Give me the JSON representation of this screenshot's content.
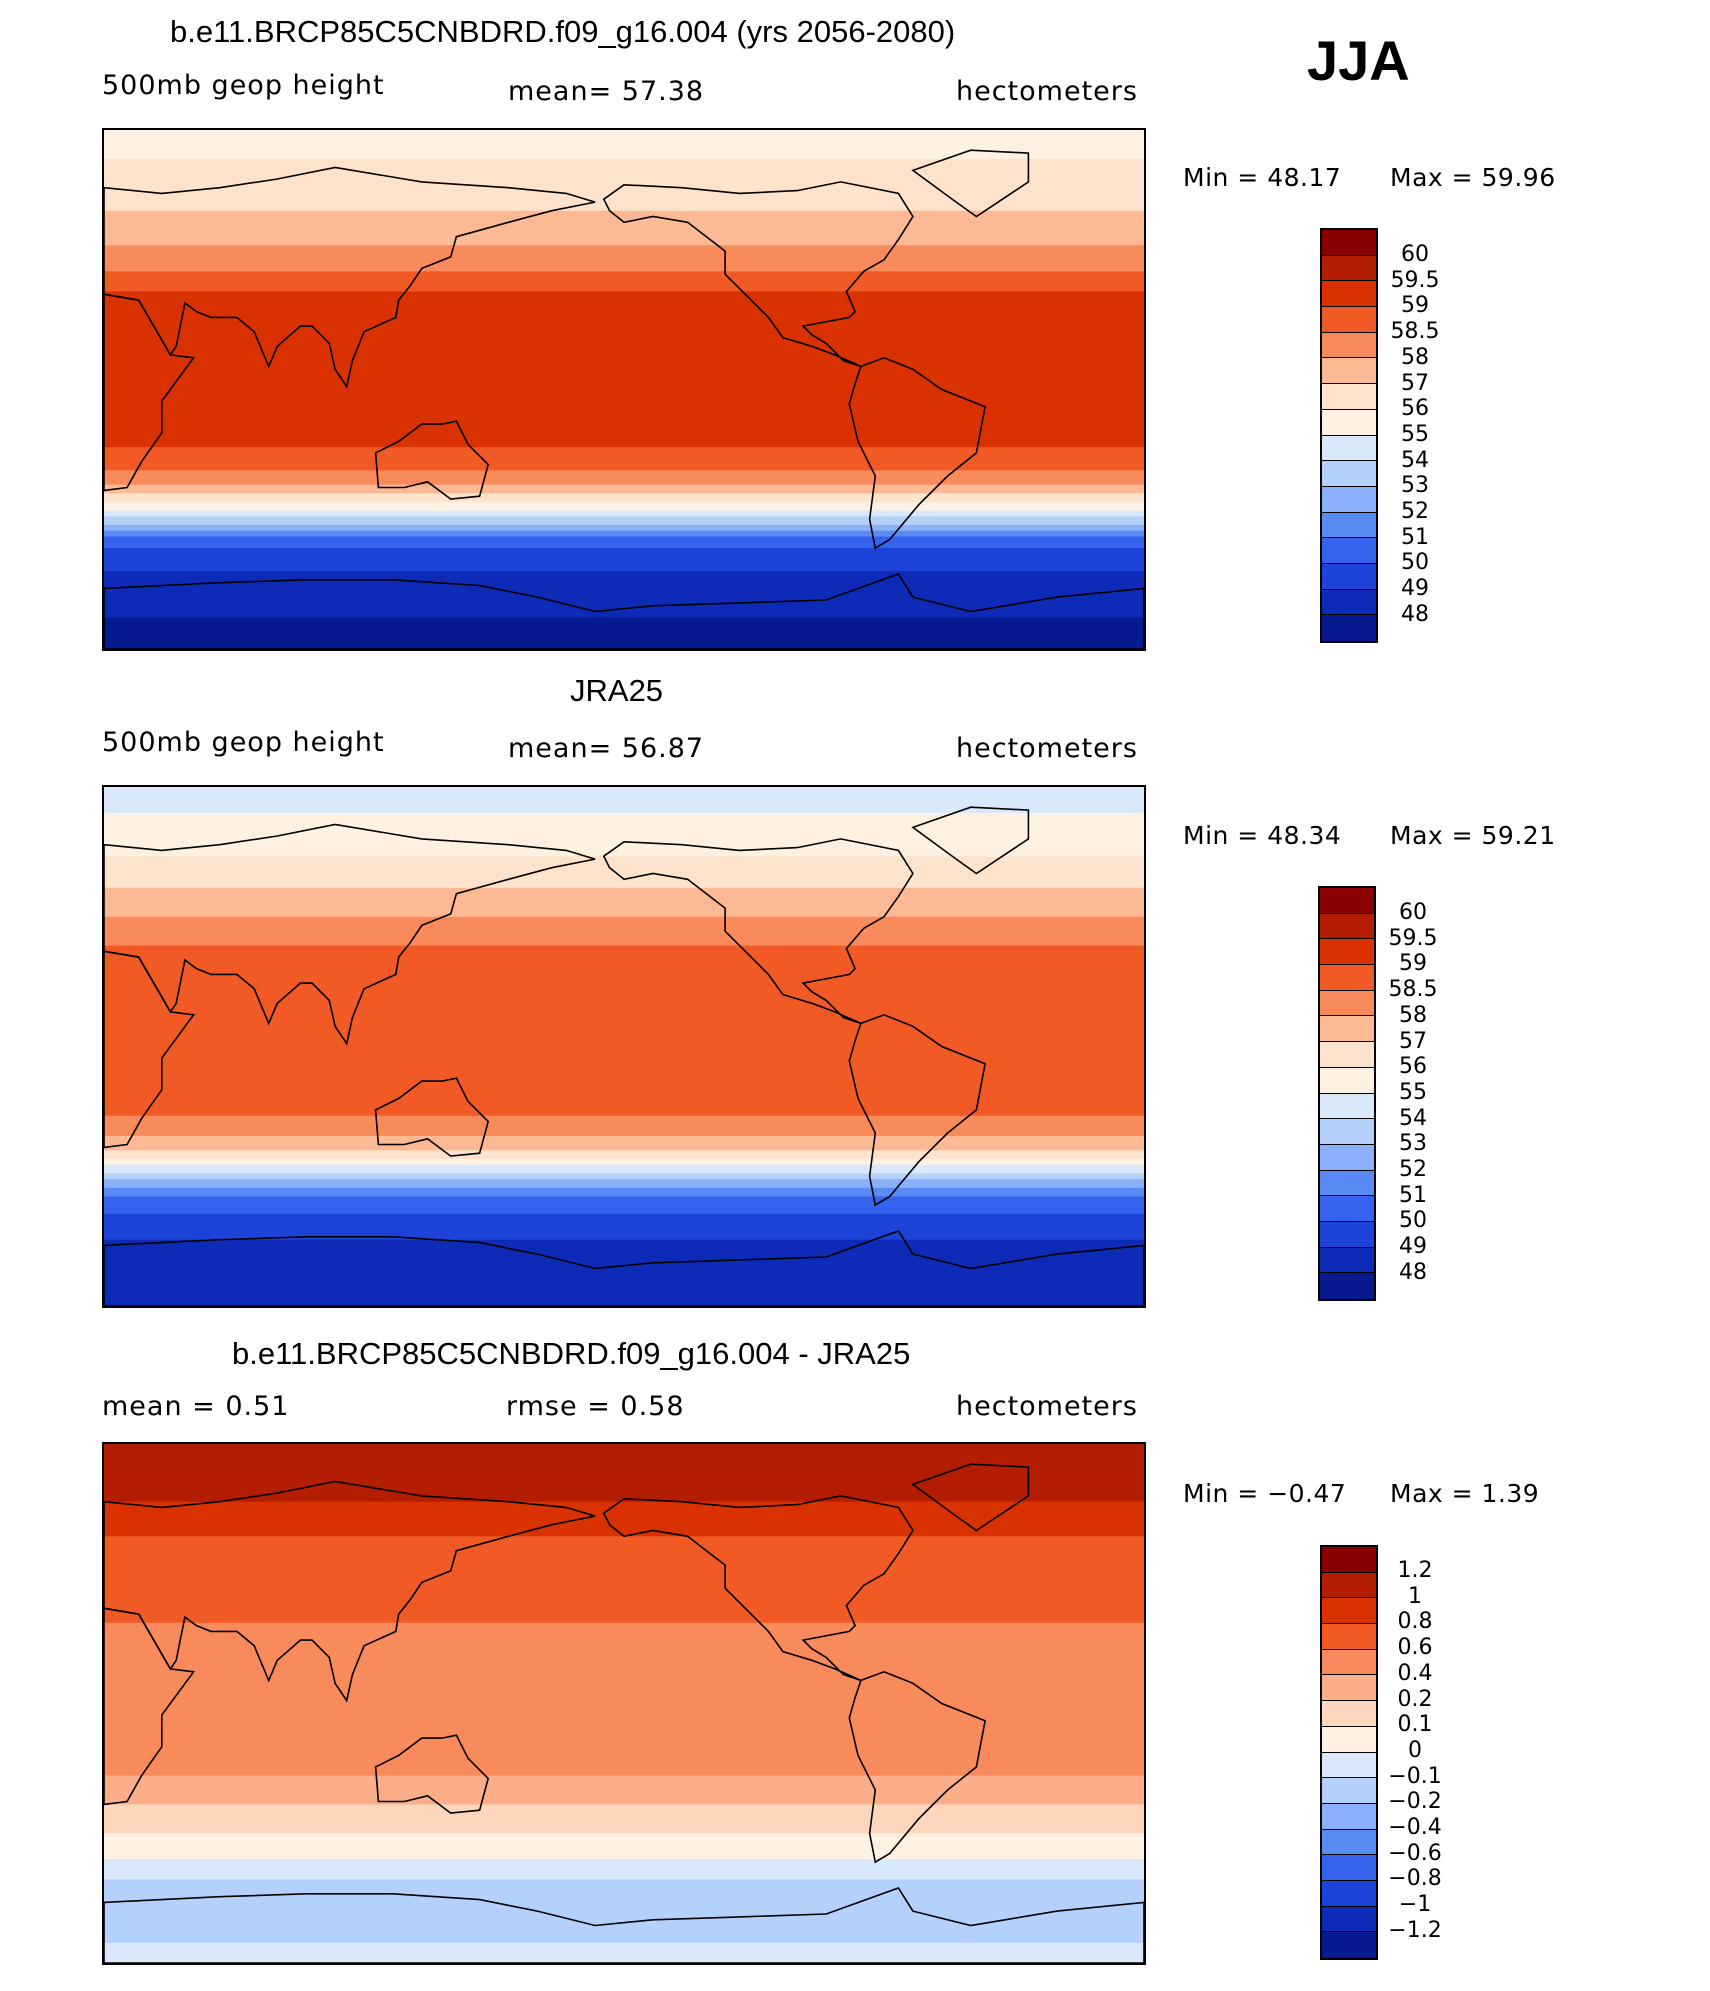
{
  "season": "JJA",
  "colors": {
    "abs_scale": [
      "#8a0000",
      "#b31d00",
      "#d93200",
      "#f15a24",
      "#f98a5c",
      "#fdb894",
      "#fde3cc",
      "#fff1e2",
      "#d9e9fb",
      "#b3d1fb",
      "#8ab0fb",
      "#5a8bf4",
      "#3563ee",
      "#1d43d9",
      "#0e2bb8",
      "#071a8f"
    ],
    "diff_scale": [
      "#8a0000",
      "#b31d00",
      "#d93200",
      "#f15a24",
      "#f98a5c",
      "#fbae88",
      "#fdd6bc",
      "#fff1e2",
      "#d9e9fb",
      "#b3d1fb",
      "#8ab0fb",
      "#5a8bf4",
      "#3563ee",
      "#1d43d9",
      "#0e2bb8",
      "#071a8f"
    ]
  },
  "chart_data": [
    {
      "type": "heatmap",
      "title": "b.e11.BRCP85C5CNBDRD.f09_g16.004 (yrs 2056-2080)",
      "left_label": "500mb  geop  height",
      "center_label": "mean=   57.38",
      "right_label": "hectometers",
      "mean": 57.38,
      "min": 48.17,
      "max": 59.96,
      "min_text": "Min  =    48.17",
      "max_text": "Max  =    59.96",
      "colorbar_levels": [
        "60",
        "59.5",
        "59",
        "58.5",
        "58",
        "57",
        "56",
        "55",
        "54",
        "53",
        "52",
        "51",
        "50",
        "49",
        "48"
      ],
      "band_index_by_lat": [
        {
          "lat": 90,
          "i": 7
        },
        {
          "lat": 70,
          "i": 6
        },
        {
          "lat": 55,
          "i": 5
        },
        {
          "lat": 45,
          "i": 4
        },
        {
          "lat": 38,
          "i": 3
        },
        {
          "lat": 30,
          "i": 2
        },
        {
          "lat": 0,
          "i": 2
        },
        {
          "lat": -15,
          "i": 2
        },
        {
          "lat": -25,
          "i": 3
        },
        {
          "lat": -32,
          "i": 4
        },
        {
          "lat": -38,
          "i": 6
        },
        {
          "lat": -43,
          "i": 8
        },
        {
          "lat": -48,
          "i": 10
        },
        {
          "lat": -52,
          "i": 12
        },
        {
          "lat": -58,
          "i": 13
        },
        {
          "lat": -68,
          "i": 14
        },
        {
          "lat": -90,
          "i": 15
        }
      ]
    },
    {
      "type": "heatmap",
      "title": "JRA25",
      "left_label": "500mb  geop  height",
      "center_label": "mean=   56.87",
      "right_label": "hectometers",
      "mean": 56.87,
      "min": 48.34,
      "max": 59.21,
      "min_text": "Min  =    48.34",
      "max_text": "Max  =    59.21",
      "colorbar_levels": [
        "60",
        "59.5",
        "59",
        "58.5",
        "58",
        "57",
        "56",
        "55",
        "54",
        "53",
        "52",
        "51",
        "50",
        "49",
        "48"
      ],
      "band_index_by_lat": [
        {
          "lat": 90,
          "i": 8
        },
        {
          "lat": 72,
          "i": 7
        },
        {
          "lat": 60,
          "i": 6
        },
        {
          "lat": 50,
          "i": 5
        },
        {
          "lat": 40,
          "i": 4
        },
        {
          "lat": 30,
          "i": 3
        },
        {
          "lat": 0,
          "i": 3
        },
        {
          "lat": -20,
          "i": 3
        },
        {
          "lat": -28,
          "i": 4
        },
        {
          "lat": -35,
          "i": 5
        },
        {
          "lat": -40,
          "i": 7
        },
        {
          "lat": -45,
          "i": 9
        },
        {
          "lat": -50,
          "i": 11
        },
        {
          "lat": -55,
          "i": 12
        },
        {
          "lat": -62,
          "i": 13
        },
        {
          "lat": -72,
          "i": 14
        },
        {
          "lat": -90,
          "i": 14
        }
      ]
    },
    {
      "type": "heatmap",
      "title": "b.e11.BRCP85C5CNBDRD.f09_g16.004 - JRA25",
      "left_label": "mean  =     0.51",
      "center_label": "rmse  =     0.58",
      "right_label": "hectometers",
      "mean": 0.51,
      "rmse": 0.58,
      "min": -0.47,
      "max": 1.39,
      "min_text": "Min  =   −0.47",
      "max_text": "Max  =      1.39",
      "colorbar_levels": [
        "1.2",
        "1",
        "0.8",
        "0.6",
        "0.4",
        "0.2",
        "0.1",
        "0",
        "−0.1",
        "−0.2",
        "−0.4",
        "−0.6",
        "−0.8",
        "−1",
        "−1.2"
      ],
      "band_index_by_lat": [
        {
          "lat": 90,
          "i": 1
        },
        {
          "lat": 75,
          "i": 1
        },
        {
          "lat": 65,
          "i": 2
        },
        {
          "lat": 50,
          "i": 3
        },
        {
          "lat": 35,
          "i": 3
        },
        {
          "lat": 20,
          "i": 4
        },
        {
          "lat": 0,
          "i": 4
        },
        {
          "lat": -20,
          "i": 4
        },
        {
          "lat": -30,
          "i": 5
        },
        {
          "lat": -40,
          "i": 6
        },
        {
          "lat": -50,
          "i": 7
        },
        {
          "lat": -58,
          "i": 8
        },
        {
          "lat": -65,
          "i": 9
        },
        {
          "lat": -75,
          "i": 9
        },
        {
          "lat": -90,
          "i": 8
        }
      ]
    }
  ]
}
